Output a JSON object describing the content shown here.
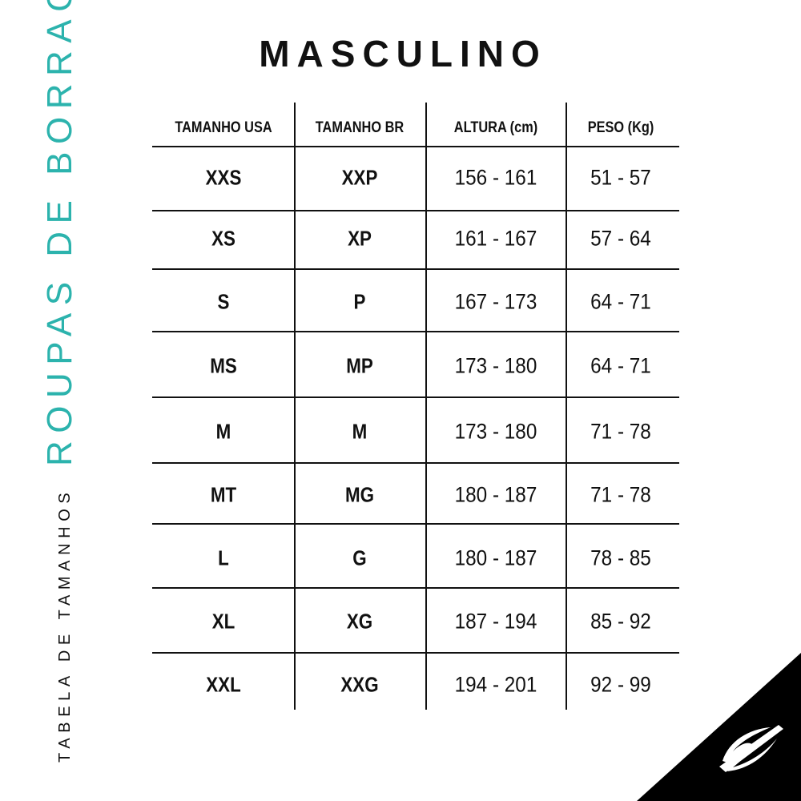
{
  "title": "MASCULINO",
  "side_title": "ROUPAS DE BORRACHA",
  "side_subtitle": "TABELA DE TAMANHOS",
  "accent_color": "#2cb3ad",
  "logo_icon": "brand-logo-icon",
  "table": {
    "headers": [
      "TAMANHO USA",
      "TAMANHO BR",
      "ALTURA (cm)",
      "PESO (Kg)"
    ],
    "rows": [
      [
        "XXS",
        "XXP",
        "156 - 161",
        "51 - 57"
      ],
      [
        "XS",
        "XP",
        "161 - 167",
        "57 - 64"
      ],
      [
        "S",
        "P",
        "167 - 173",
        "64 - 71"
      ],
      [
        "MS",
        "MP",
        "173 - 180",
        "64 - 71"
      ],
      [
        "M",
        "M",
        "173 - 180",
        "71 - 78"
      ],
      [
        "MT",
        "MG",
        "180 - 187",
        "71 - 78"
      ],
      [
        "L",
        "G",
        "180 - 187",
        "78 - 85"
      ],
      [
        "XL",
        "XG",
        "187 - 194",
        "85 - 92"
      ],
      [
        "XXL",
        "XXG",
        "194 - 201",
        "92 - 99"
      ]
    ]
  }
}
